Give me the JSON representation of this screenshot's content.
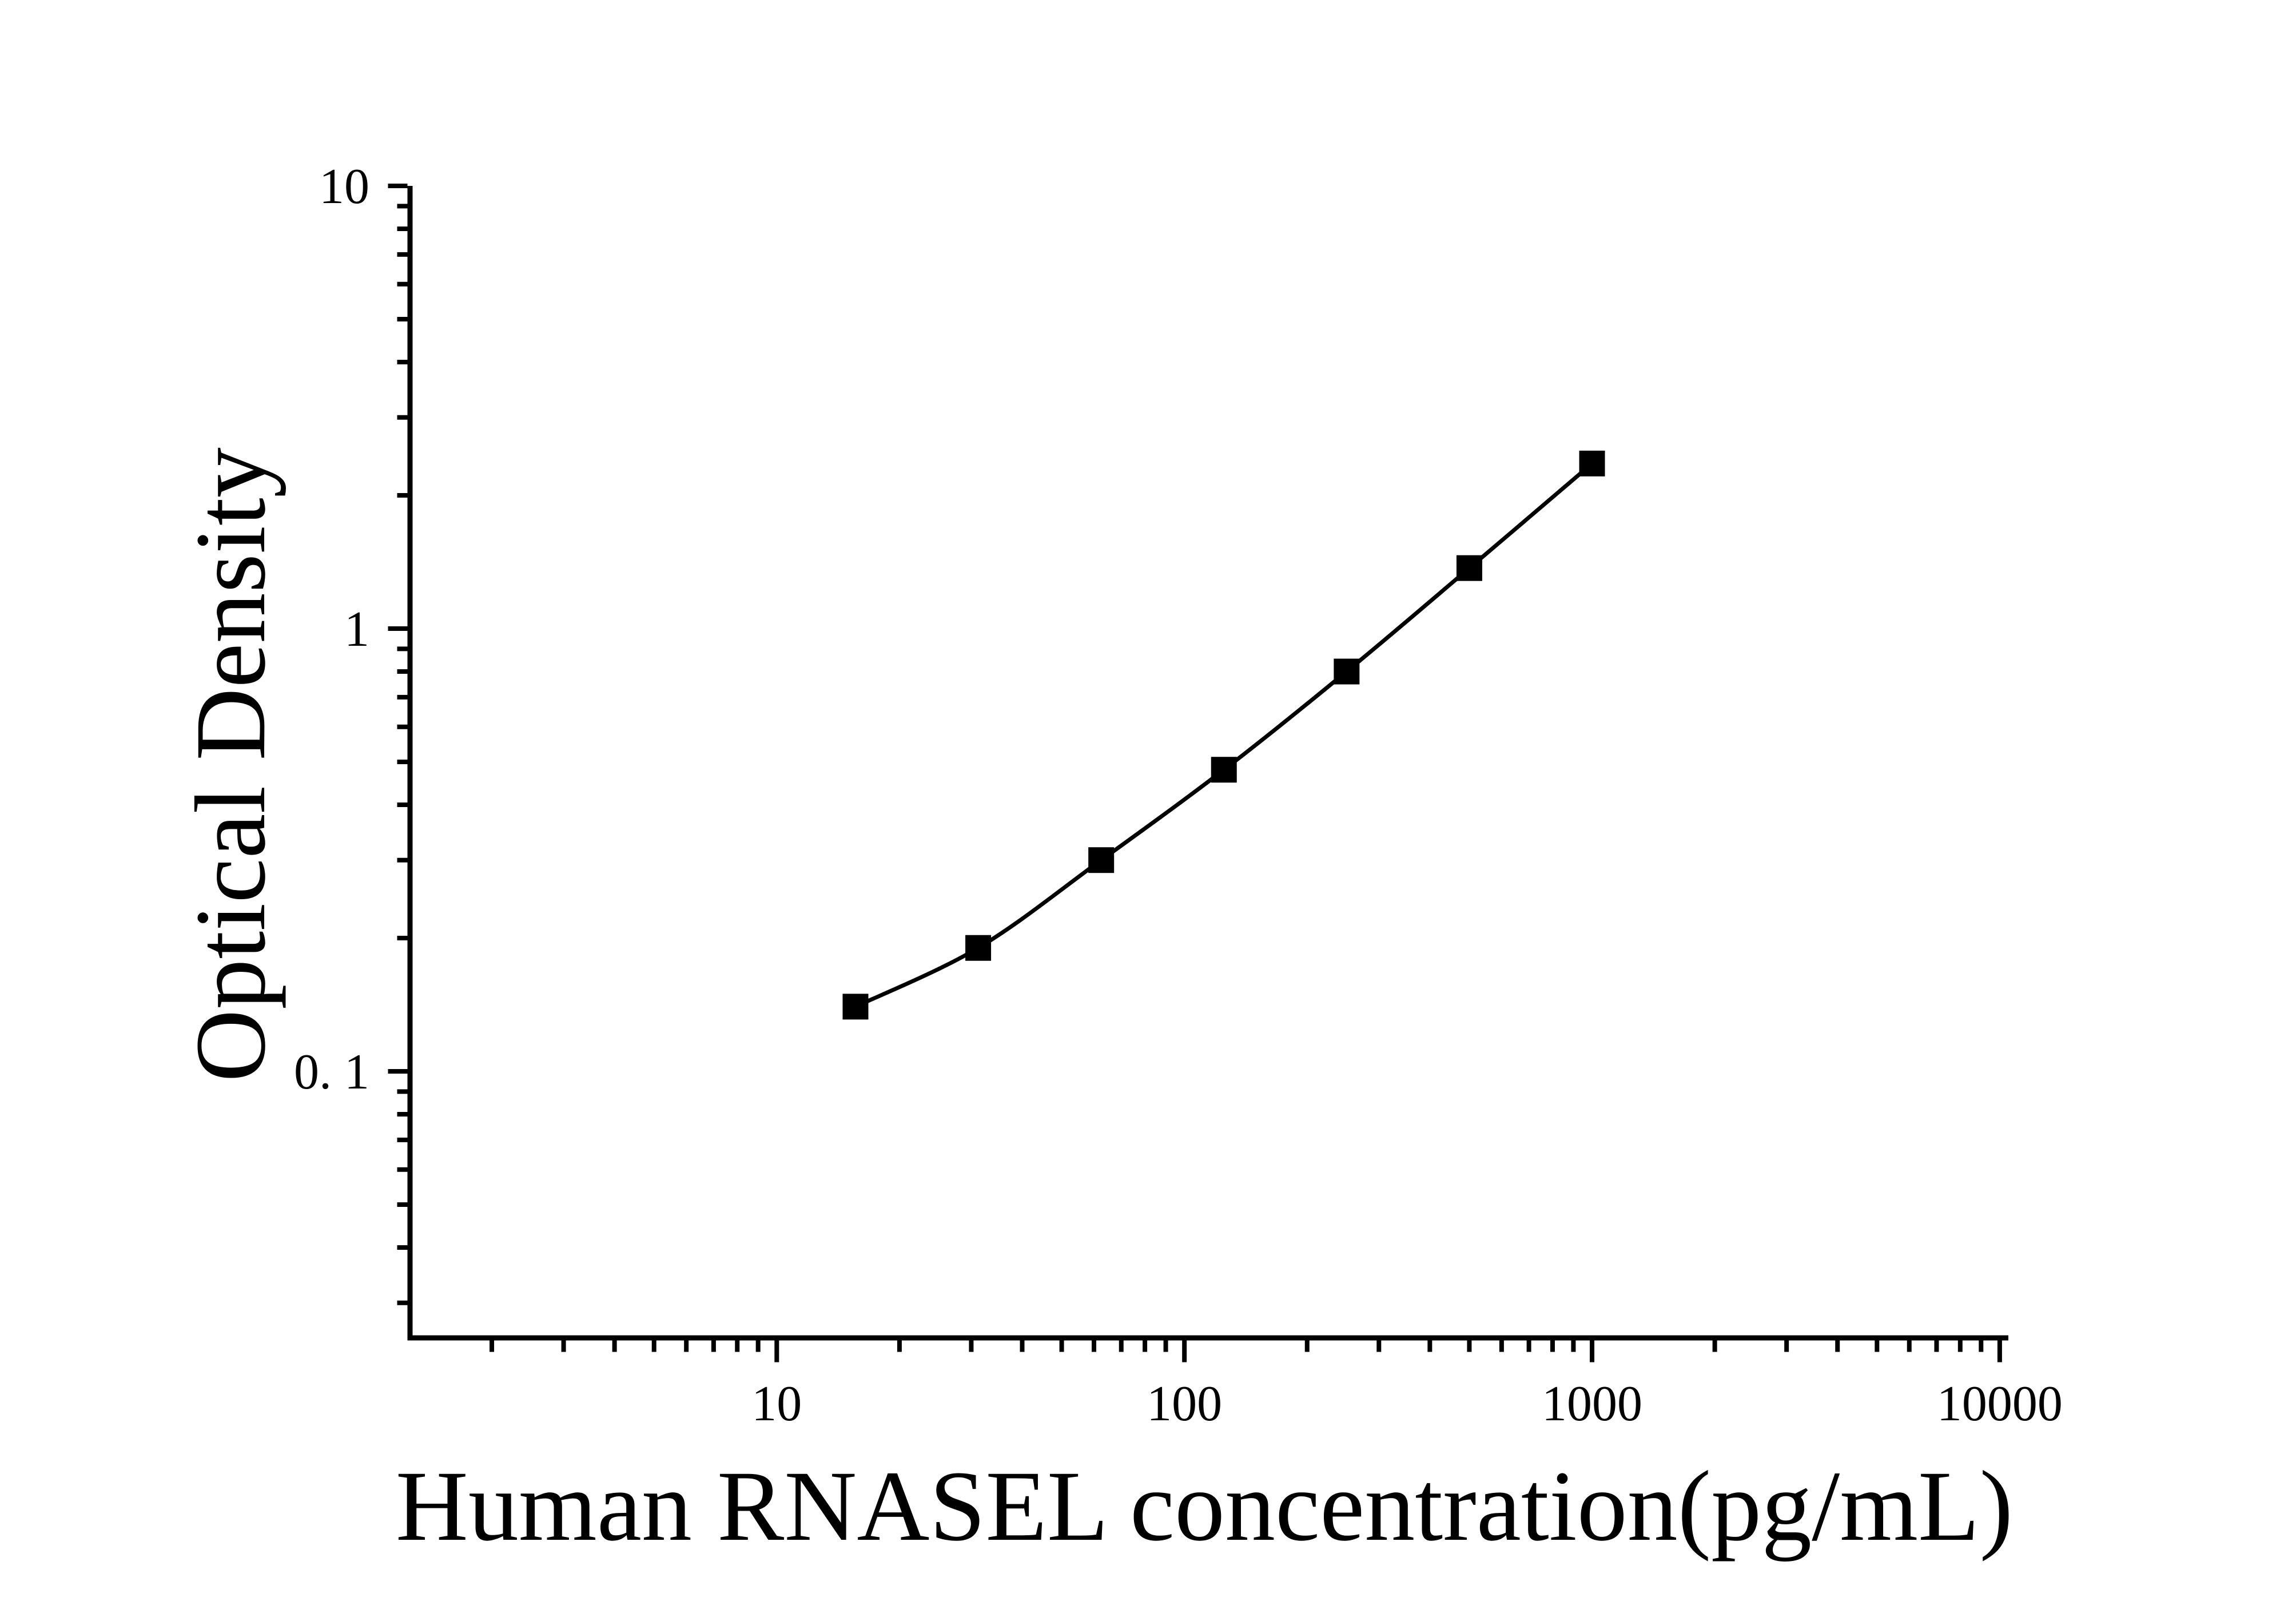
{
  "chart_data": {
    "type": "line",
    "title": "",
    "xlabel": "Human RNASEL concentration(pg/mL)",
    "ylabel": "Optical Density",
    "xscale": "log",
    "yscale": "log",
    "x": [
      15.6,
      31.2,
      62.5,
      125,
      250,
      500,
      1000
    ],
    "y": [
      0.14,
      0.19,
      0.3,
      0.48,
      0.8,
      1.37,
      2.36
    ],
    "xlim": [
      1.26,
      10500
    ],
    "ylim": [
      0.025,
      10
    ],
    "xticks": [
      10,
      100,
      1000,
      10000
    ],
    "xtick_labels": [
      "10",
      "100",
      "1000",
      "10000"
    ],
    "yticks": [
      0.1,
      1,
      10
    ],
    "ytick_labels": [
      "0. 1",
      "1",
      "10"
    ],
    "grid": false,
    "legend": "none",
    "marker": "filled-square",
    "line_color": "#000000",
    "marker_color": "#000000",
    "axis_color": "#000000",
    "background": "#ffffff"
  }
}
